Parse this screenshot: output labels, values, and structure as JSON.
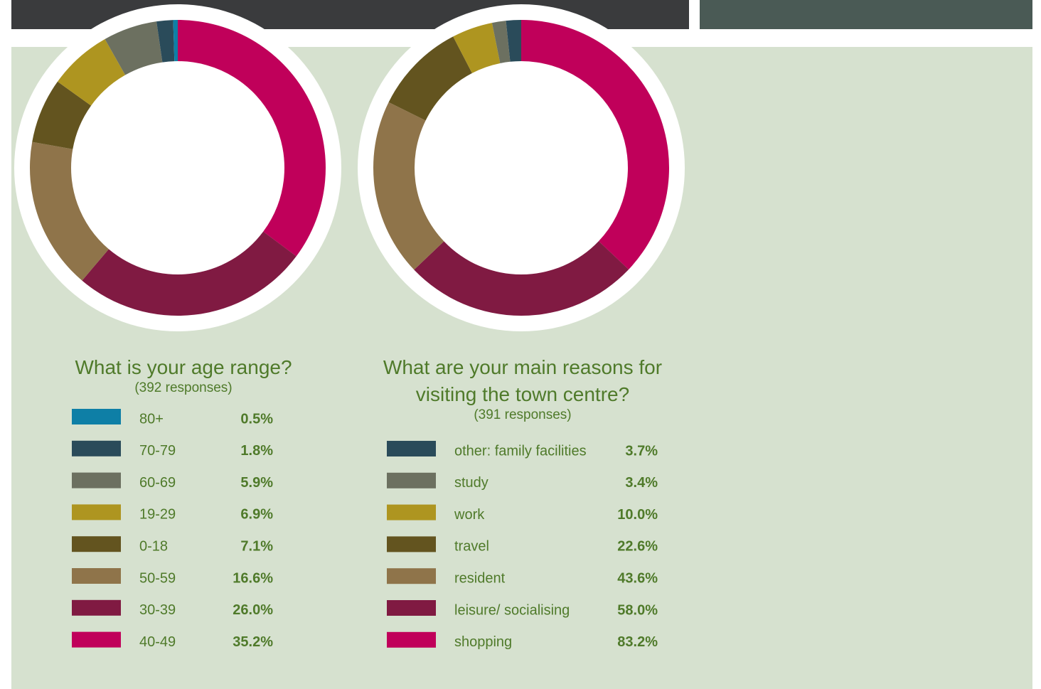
{
  "chart_data": [
    {
      "type": "pie",
      "title": "What is your age range?",
      "subtitle": "(392 responses)",
      "categories": [
        "80+",
        "70-79",
        "60-69",
        "19-29",
        "0-18",
        "50-59",
        "30-39",
        "40-49"
      ],
      "values": [
        0.5,
        1.8,
        5.9,
        6.9,
        7.1,
        16.6,
        26.0,
        35.2
      ],
      "value_labels": [
        "0.5%",
        "1.8%",
        "5.9%",
        "6.9%",
        "7.1%",
        "16.6%",
        "26.0%",
        "35.2%"
      ],
      "colors": [
        "#0e7fa6",
        "#2a4b5a",
        "#6c7060",
        "#ae9520",
        "#63541f",
        "#8f744a",
        "#801a42",
        "#c0005a"
      ]
    },
    {
      "type": "pie",
      "title": "What are your main reasons for visiting the town centre?",
      "subtitle": "(391 responses)",
      "categories": [
        "other: family facilities",
        "study",
        "work",
        "travel",
        "resident",
        "leisure/ socialising",
        "shopping"
      ],
      "values": [
        3.7,
        3.4,
        10.0,
        22.6,
        43.6,
        58.0,
        83.2
      ],
      "value_labels": [
        "3.7%",
        "3.4%",
        "10.0%",
        "22.6%",
        "43.6%",
        "58.0%",
        "83.2%"
      ],
      "colors": [
        "#2a4b5a",
        "#6c7060",
        "#ae9520",
        "#63541f",
        "#8f744a",
        "#801a42",
        "#c0005a"
      ]
    }
  ]
}
